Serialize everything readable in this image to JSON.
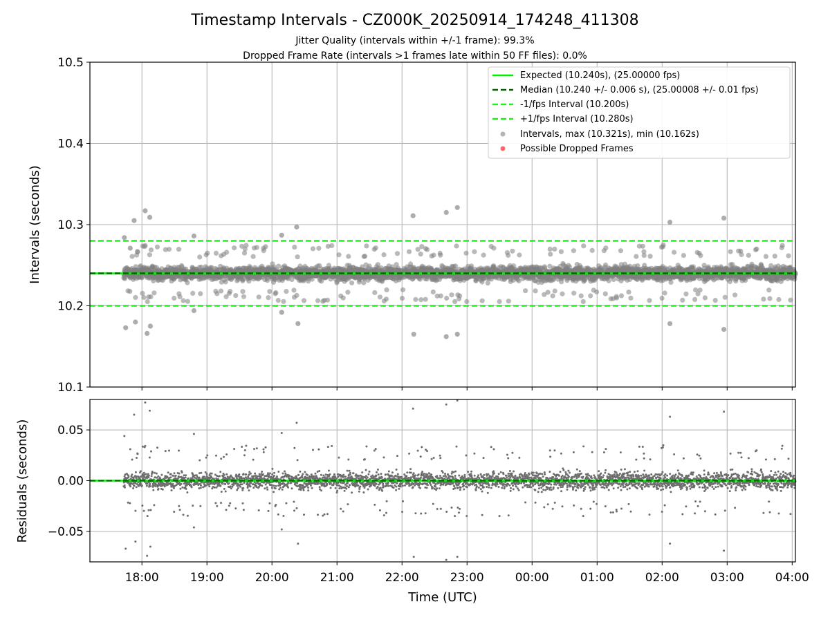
{
  "chart_data": {
    "type": "scatter",
    "title": "Timestamp Intervals - CZ000K_20250914_174248_411308",
    "subtitle_lines": [
      "Jitter Quality (intervals within +/-1 frame): 99.3%",
      "Dropped Frame Rate (intervals >1 frames late within 50 FF files): 0.0%"
    ],
    "xlabel": "Time (UTC)",
    "x_tick_labels": [
      "18:00",
      "19:00",
      "20:00",
      "21:00",
      "22:00",
      "23:00",
      "00:00",
      "01:00",
      "02:00",
      "03:00",
      "04:00"
    ],
    "x_range_hours": [
      17.2,
      28.05
    ],
    "data_x_range_hours": [
      17.72,
      28.05
    ],
    "grid": true,
    "colors": {
      "expected": "#00ee00",
      "median": "#006400",
      "interval_bounds": "#22ee22",
      "points": "#808080",
      "dropped": "#ff4444"
    },
    "top_panel": {
      "ylabel": "Intervals (seconds)",
      "ylim": [
        10.1,
        10.5
      ],
      "y_ticks": [
        10.1,
        10.2,
        10.3,
        10.4,
        10.5
      ],
      "y_tick_labels": [
        "10.1",
        "10.2",
        "10.3",
        "10.4",
        "10.5"
      ],
      "expected": 10.24,
      "median": 10.24,
      "minus_1fps": 10.2,
      "plus_1fps": 10.28,
      "legend_position": "top-right",
      "legend": [
        "Expected (10.240s), (25.00000 fps)",
        "Median (10.240 +/- 0.006 s), (25.00008 +/- 0.01 fps)",
        "-1/fps Interval (10.200s)",
        "+1/fps Interval (10.280s)",
        "Intervals, max (10.321s), min (10.162s)",
        "Possible Dropped Frames"
      ],
      "median_value": 10.24,
      "std_value": 0.006,
      "outliers": [
        {
          "x": 17.73,
          "y": 10.284
        },
        {
          "x": 17.75,
          "y": 10.173
        },
        {
          "x": 17.82,
          "y": 10.271
        },
        {
          "x": 17.88,
          "y": 10.305
        },
        {
          "x": 17.9,
          "y": 10.18
        },
        {
          "x": 18.05,
          "y": 10.317
        },
        {
          "x": 18.08,
          "y": 10.166
        },
        {
          "x": 18.12,
          "y": 10.309
        },
        {
          "x": 18.13,
          "y": 10.175
        },
        {
          "x": 18.8,
          "y": 10.286
        },
        {
          "x": 18.8,
          "y": 10.194
        },
        {
          "x": 20.15,
          "y": 10.287
        },
        {
          "x": 20.15,
          "y": 10.192
        },
        {
          "x": 20.38,
          "y": 10.297
        },
        {
          "x": 20.4,
          "y": 10.178
        },
        {
          "x": 22.17,
          "y": 10.311
        },
        {
          "x": 22.18,
          "y": 10.165
        },
        {
          "x": 22.68,
          "y": 10.315
        },
        {
          "x": 22.68,
          "y": 10.162
        },
        {
          "x": 22.85,
          "y": 10.321
        },
        {
          "x": 22.85,
          "y": 10.165
        },
        {
          "x": 26.12,
          "y": 10.303
        },
        {
          "x": 26.12,
          "y": 10.178
        },
        {
          "x": 26.95,
          "y": 10.308
        },
        {
          "x": 26.95,
          "y": 10.171
        }
      ]
    },
    "bottom_panel": {
      "ylabel": "Residuals (seconds)",
      "ylim": [
        -0.08,
        0.08
      ],
      "y_ticks": [
        -0.05,
        0.0,
        0.05
      ],
      "y_tick_labels": [
        "−0.05",
        "0.00",
        "0.05"
      ],
      "zero_line": 0.0
    }
  }
}
